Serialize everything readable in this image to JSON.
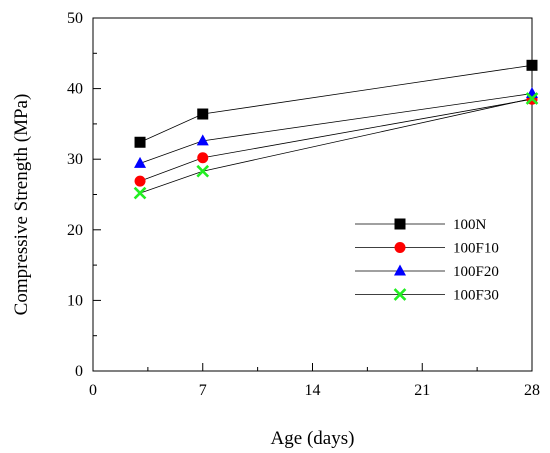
{
  "chart_data": {
    "type": "line",
    "xlabel": "Age (days)",
    "ylabel": "Compressive Strength (MPa)",
    "xlim": [
      0,
      28
    ],
    "ylim": [
      0,
      50
    ],
    "xticks": [
      0,
      7,
      14,
      21,
      28
    ],
    "yticks": [
      0,
      10,
      20,
      30,
      40,
      50
    ],
    "x": [
      3,
      7,
      28
    ],
    "grid": false,
    "legend_position": "center-right",
    "series": [
      {
        "name": "100N",
        "values": [
          32.4,
          36.4,
          43.3
        ],
        "marker": "square",
        "color": "#000000"
      },
      {
        "name": "100F10",
        "values": [
          26.9,
          30.2,
          38.5
        ],
        "marker": "circle",
        "color": "#ff0000"
      },
      {
        "name": "100F20",
        "values": [
          29.4,
          32.6,
          39.3
        ],
        "marker": "triangle",
        "color": "#0000ff"
      },
      {
        "name": "100F30",
        "values": [
          25.2,
          28.3,
          38.6
        ],
        "marker": "x",
        "color": "#22ee22"
      }
    ]
  }
}
